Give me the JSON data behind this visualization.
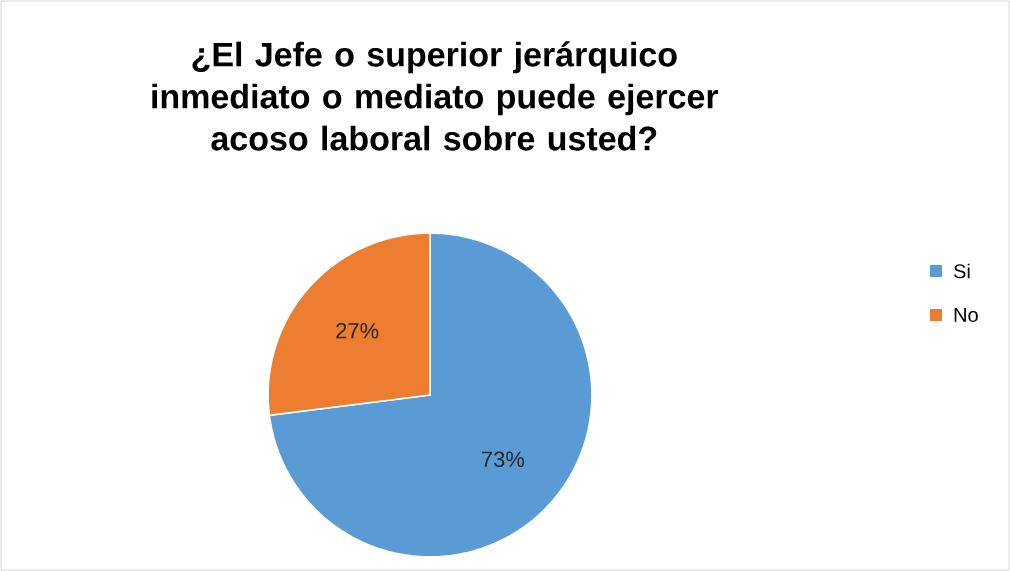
{
  "chart_data": {
    "type": "pie",
    "title": "¿El Jefe o superior jerárquico inmediato o mediato puede ejercer acoso laboral sobre usted?",
    "categories": [
      "Si",
      "No"
    ],
    "values": [
      73,
      27
    ],
    "colors": [
      "#5b9bd5",
      "#ed7d31"
    ],
    "value_labels": [
      "73%",
      "27%"
    ],
    "legend": "right"
  }
}
